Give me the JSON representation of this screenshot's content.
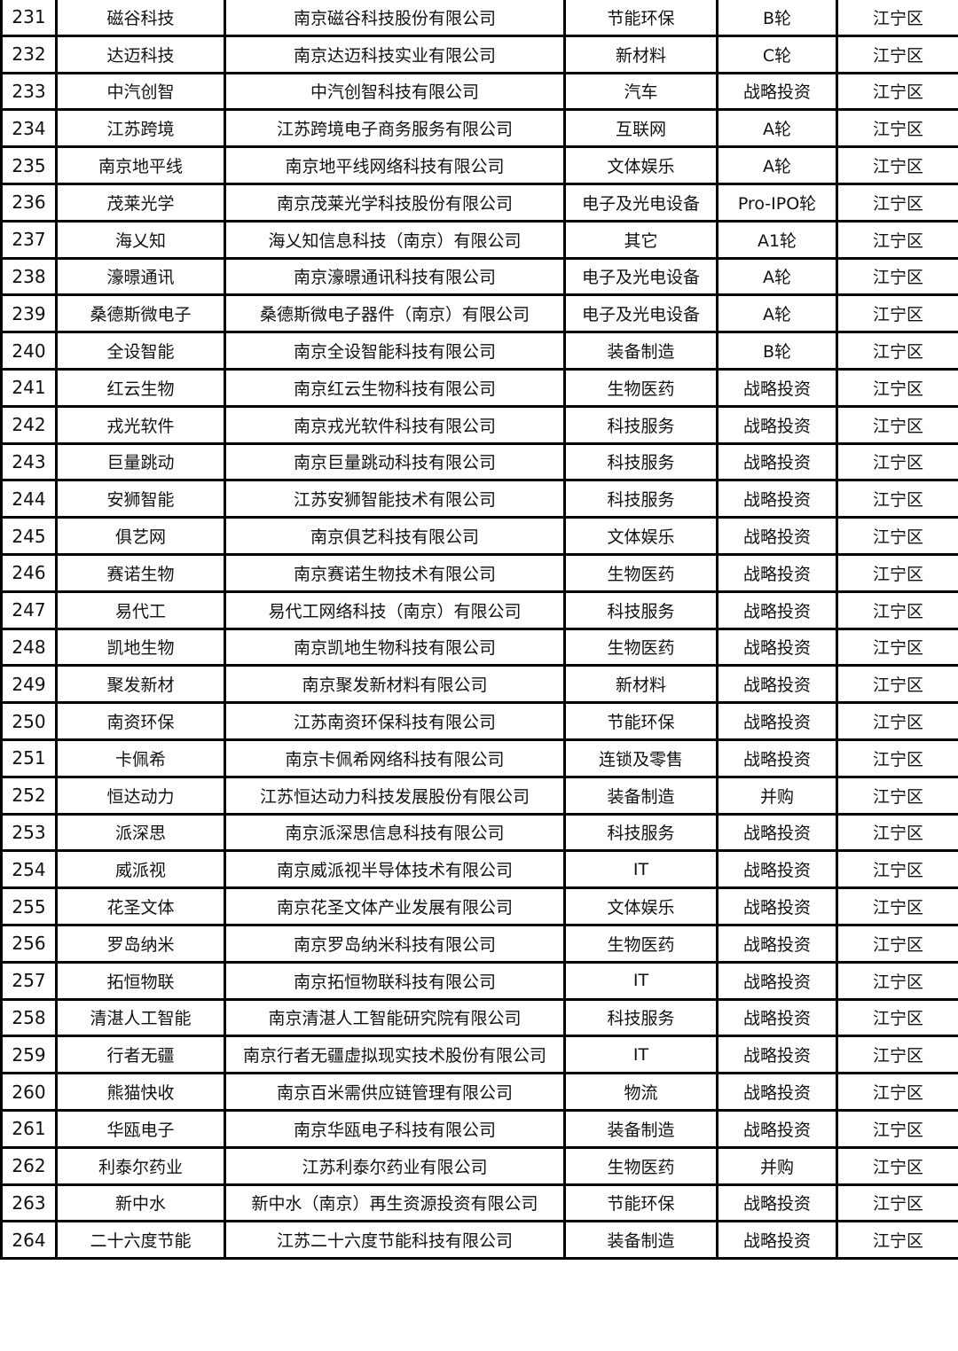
{
  "rows": [
    [
      "231",
      "磁谷科技",
      "南京磁谷科技股份有限公司",
      "节能环保",
      "B轮",
      "江宁区"
    ],
    [
      "232",
      "达迈科技",
      "南京达迈科技实业有限公司",
      "新材料",
      "C轮",
      "江宁区"
    ],
    [
      "233",
      "中汽创智",
      "中汽创智科技有限公司",
      "汽车",
      "战略投资",
      "江宁区"
    ],
    [
      "234",
      "江苏跨境",
      "江苏跨境电子商务服务有限公司",
      "互联网",
      "A轮",
      "江宁区"
    ],
    [
      "235",
      "南京地平线",
      "南京地平线网络科技有限公司",
      "文体娱乐",
      "A轮",
      "江宁区"
    ],
    [
      "236",
      "茂莱光学",
      "南京茂莱光学科技股份有限公司",
      "电子及光电设备",
      "Pro-IPO轮",
      "江宁区"
    ],
    [
      "237",
      "海乂知",
      "海乂知信息科技（南京）有限公司",
      "其它",
      "A1轮",
      "江宁区"
    ],
    [
      "238",
      "濠暻通讯",
      "南京濠暻通讯科技有限公司",
      "电子及光电设备",
      "A轮",
      "江宁区"
    ],
    [
      "239",
      "桑德斯微电子",
      "桑德斯微电子器件（南京）有限公司",
      "电子及光电设备",
      "A轮",
      "江宁区"
    ],
    [
      "240",
      "全设智能",
      "南京全设智能科技有限公司",
      "装备制造",
      "B轮",
      "江宁区"
    ],
    [
      "241",
      "红云生物",
      "南京红云生物科技有限公司",
      "生物医药",
      "战略投资",
      "江宁区"
    ],
    [
      "242",
      "戎光软件",
      "南京戎光软件科技有限公司",
      "科技服务",
      "战略投资",
      "江宁区"
    ],
    [
      "243",
      "巨量跳动",
      "南京巨量跳动科技有限公司",
      "科技服务",
      "战略投资",
      "江宁区"
    ],
    [
      "244",
      "安狮智能",
      "江苏安狮智能技术有限公司",
      "科技服务",
      "战略投资",
      "江宁区"
    ],
    [
      "245",
      "俱艺网",
      "南京俱艺科技有限公司",
      "文体娱乐",
      "战略投资",
      "江宁区"
    ],
    [
      "246",
      "赛诺生物",
      "南京赛诺生物技术有限公司",
      "生物医药",
      "战略投资",
      "江宁区"
    ],
    [
      "247",
      "易代工",
      "易代工网络科技（南京）有限公司",
      "科技服务",
      "战略投资",
      "江宁区"
    ],
    [
      "248",
      "凯地生物",
      "南京凯地生物科技有限公司",
      "生物医药",
      "战略投资",
      "江宁区"
    ],
    [
      "249",
      "聚发新材",
      "南京聚发新材料有限公司",
      "新材料",
      "战略投资",
      "江宁区"
    ],
    [
      "250",
      "南资环保",
      "江苏南资环保科技有限公司",
      "节能环保",
      "战略投资",
      "江宁区"
    ],
    [
      "251",
      "卡佩希",
      "南京卡佩希网络科技有限公司",
      "连锁及零售",
      "战略投资",
      "江宁区"
    ],
    [
      "252",
      "恒达动力",
      "江苏恒达动力科技发展股份有限公司",
      "装备制造",
      "并购",
      "江宁区"
    ],
    [
      "253",
      "派深思",
      "南京派深思信息科技有限公司",
      "科技服务",
      "战略投资",
      "江宁区"
    ],
    [
      "254",
      "威派视",
      "南京威派视半导体技术有限公司",
      "IT",
      "战略投资",
      "江宁区"
    ],
    [
      "255",
      "花圣文体",
      "南京花圣文体产业发展有限公司",
      "文体娱乐",
      "战略投资",
      "江宁区"
    ],
    [
      "256",
      "罗岛纳米",
      "南京罗岛纳米科技有限公司",
      "生物医药",
      "战略投资",
      "江宁区"
    ],
    [
      "257",
      "拓恒物联",
      "南京拓恒物联科技有限公司",
      "IT",
      "战略投资",
      "江宁区"
    ],
    [
      "258",
      "清湛人工智能",
      "南京清湛人工智能研究院有限公司",
      "科技服务",
      "战略投资",
      "江宁区"
    ],
    [
      "259",
      "行者无疆",
      "南京行者无疆虚拟现实技术股份有限公司",
      "IT",
      "战略投资",
      "江宁区"
    ],
    [
      "260",
      "熊猫快收",
      "南京百米需供应链管理有限公司",
      "物流",
      "战略投资",
      "江宁区"
    ],
    [
      "261",
      "华瓯电子",
      "南京华瓯电子科技有限公司",
      "装备制造",
      "战略投资",
      "江宁区"
    ],
    [
      "262",
      "利泰尔药业",
      "江苏利泰尔药业有限公司",
      "生物医药",
      "并购",
      "江宁区"
    ],
    [
      "263",
      "新中水",
      "新中水（南京）再生资源投资有限公司",
      "节能环保",
      "战略投资",
      "江宁区"
    ],
    [
      "264",
      "二十六度节能",
      "江苏二十六度节能科技有限公司",
      "装备制造",
      "战略投资",
      "江宁区"
    ]
  ]
}
